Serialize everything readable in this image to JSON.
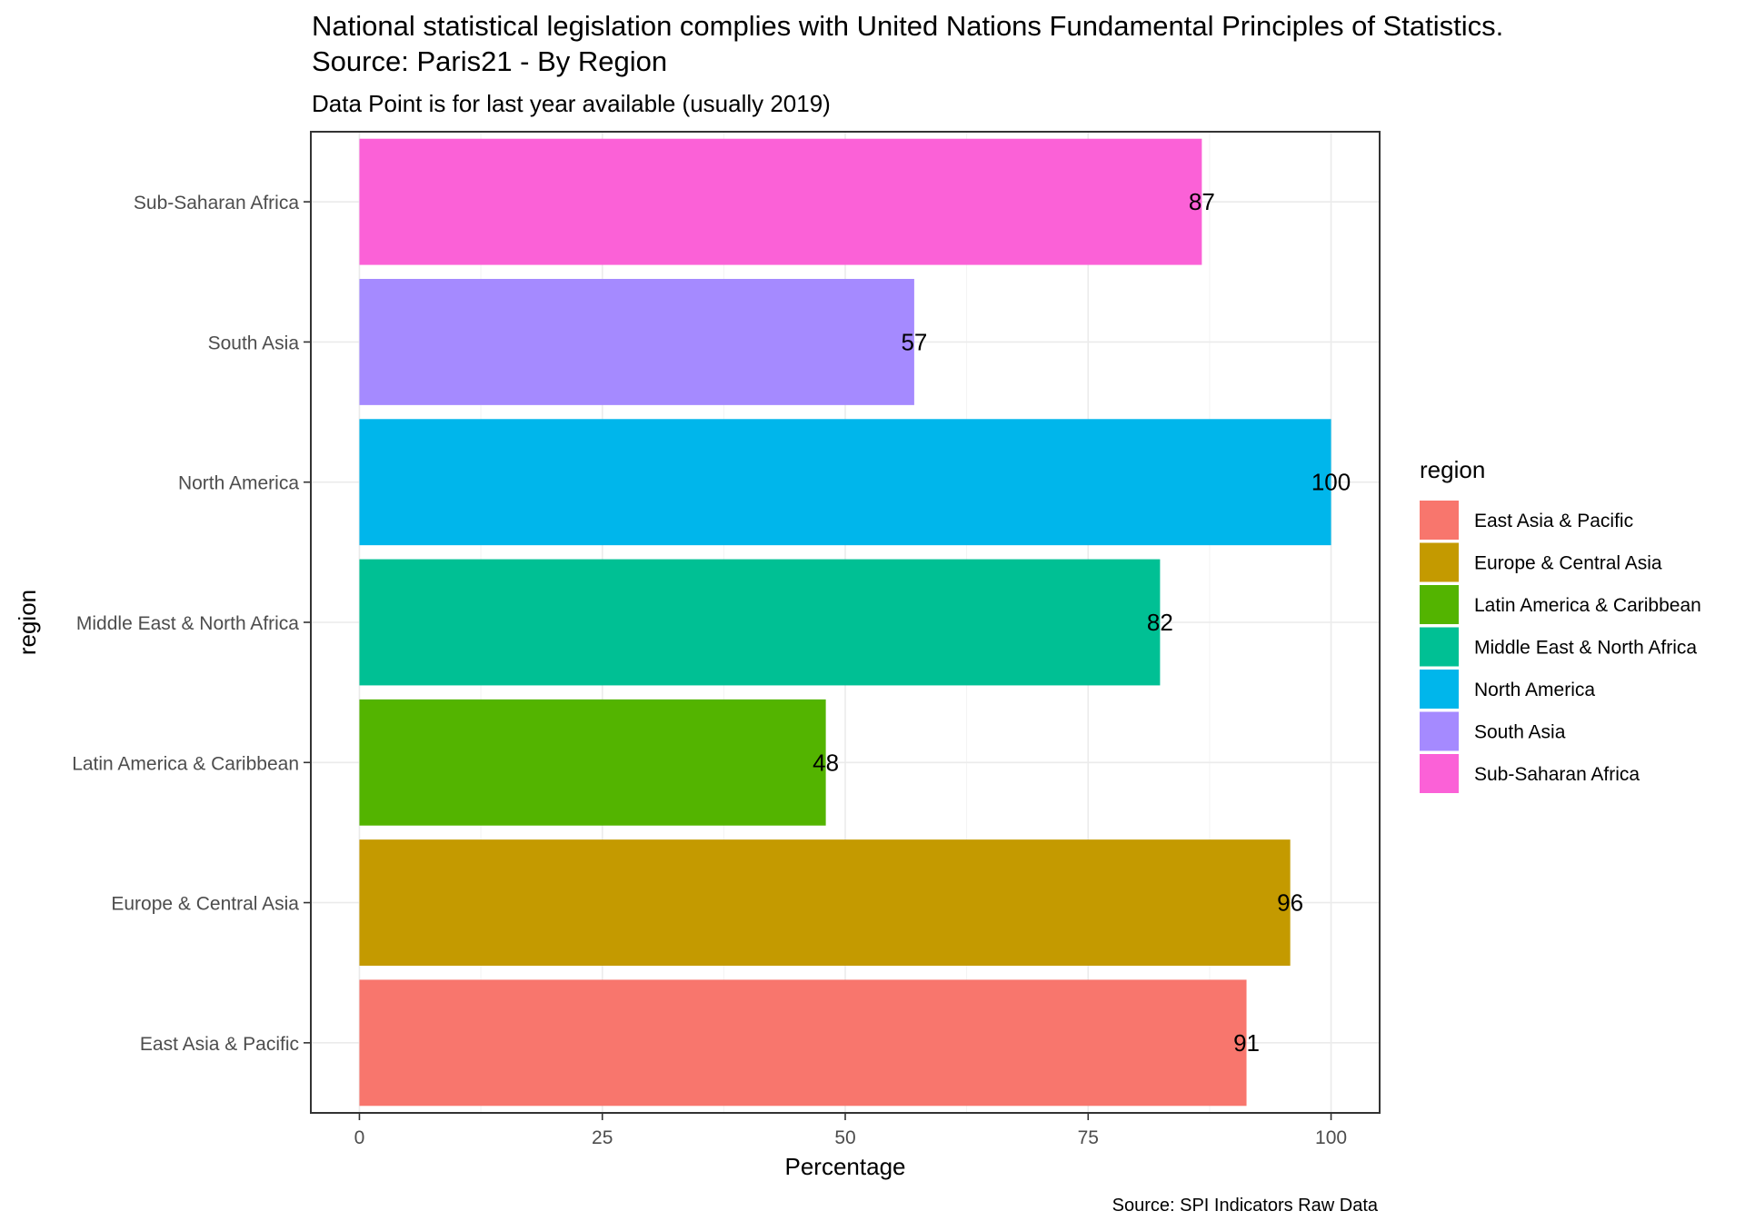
{
  "chart_data": {
    "type": "bar",
    "orientation": "horizontal",
    "title": "National statistical legislation complies with United Nations Fundamental Principles of Statistics.",
    "title_line2": "Source: Paris21 - By Region",
    "subtitle": "Data Point is for last year available (usually 2019)",
    "xlabel": "Percentage",
    "ylabel": "region",
    "caption": "Source: SPI Indicators Raw Data",
    "xlim": [
      -5,
      105
    ],
    "x_ticks": [
      0,
      25,
      50,
      75,
      100
    ],
    "grid": true,
    "legend_title": "region",
    "legend_position": "right",
    "categories": [
      "East Asia & Pacific",
      "Europe & Central Asia",
      "Latin America & Caribbean",
      "Middle East & North Africa",
      "North America",
      "South Asia",
      "Sub-Saharan Africa"
    ],
    "values": [
      91.3,
      95.8,
      48.0,
      82.4,
      100,
      57.1,
      86.7
    ],
    "data_labels": [
      "91",
      "96",
      "48",
      "82",
      "100",
      "57",
      "87"
    ],
    "colors": [
      "#F8766D",
      "#C49A00",
      "#53B400",
      "#00C094",
      "#00B6EB",
      "#A58AFF",
      "#FB61D7"
    ]
  }
}
